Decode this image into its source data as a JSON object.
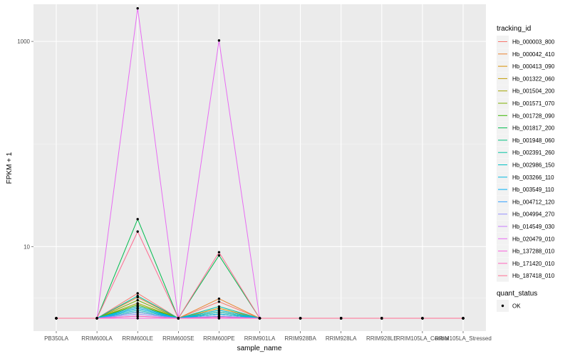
{
  "chart_data": {
    "type": "line",
    "xlabel": "sample_name",
    "ylabel": "FPKM + 1",
    "y_scale": "log10",
    "ylim": [
      1.5,
      2300
    ],
    "y_ticks": [
      {
        "value": 10,
        "label": "10"
      },
      {
        "value": 1000,
        "label": "1000"
      }
    ],
    "categories": [
      "PB350LA",
      "RRIM600LA",
      "RRIM600LE",
      "RRIM600SE",
      "RRIM600PE",
      "RRIM901LA",
      "RRIM928BA",
      "RRIM928LA",
      "RRIM928LE",
      "RRIM105LA_Control",
      "RRIM105LA_Stressed"
    ],
    "grid": true,
    "legend": {
      "position": "right",
      "title": "tracking_id",
      "entries": [
        "Hb_000003_800",
        "Hb_000042_410",
        "Hb_000413_090",
        "Hb_001322_060",
        "Hb_001504_200",
        "Hb_001571_070",
        "Hb_001728_090",
        "Hb_001817_200",
        "Hb_001948_060",
        "Hb_002391_260",
        "Hb_002986_150",
        "Hb_003266_110",
        "Hb_003549_110",
        "Hb_004712_120",
        "Hb_004994_270",
        "Hb_014549_030",
        "Hb_020479_010",
        "Hb_137288_010",
        "Hb_171420_010",
        "Hb_187418_010"
      ]
    },
    "shape_legend": {
      "title": "quant_status",
      "entries": [
        "OK"
      ]
    },
    "series": [
      {
        "name": "Hb_000003_800",
        "color": "#F8766D",
        "values": [
          2,
          2,
          3.5,
          2,
          2.9,
          2,
          2,
          2,
          2,
          2,
          2
        ]
      },
      {
        "name": "Hb_000042_410",
        "color": "#EA8331",
        "values": [
          2,
          2,
          3.2,
          2,
          3.1,
          2,
          2,
          2,
          2,
          2,
          2
        ]
      },
      {
        "name": "Hb_000413_090",
        "color": "#D89000",
        "values": [
          2,
          2,
          2.6,
          2,
          2.5,
          2,
          2,
          2,
          2,
          2,
          2
        ]
      },
      {
        "name": "Hb_001322_060",
        "color": "#C09B00",
        "values": [
          2,
          2,
          2.3,
          2,
          2.3,
          2,
          2,
          2,
          2,
          2,
          2
        ]
      },
      {
        "name": "Hb_001504_200",
        "color": "#A3A500",
        "values": [
          2,
          2,
          2.8,
          2,
          2.2,
          2,
          2,
          2,
          2,
          2,
          2
        ]
      },
      {
        "name": "Hb_001571_070",
        "color": "#7CAE00",
        "values": [
          2,
          2,
          3.0,
          2,
          2.4,
          2,
          2,
          2,
          2,
          2,
          2
        ]
      },
      {
        "name": "Hb_001728_090",
        "color": "#39B600",
        "values": [
          2,
          2,
          2.7,
          2,
          2.1,
          2,
          2,
          2,
          2,
          2,
          2
        ]
      },
      {
        "name": "Hb_001817_200",
        "color": "#00BB4E",
        "values": [
          2,
          2,
          18.5,
          2,
          8.2,
          2,
          2,
          2,
          2,
          2,
          2
        ]
      },
      {
        "name": "Hb_001948_060",
        "color": "#00BF7D",
        "values": [
          2,
          2,
          2.5,
          2,
          2.2,
          2,
          2,
          2,
          2,
          2,
          2
        ]
      },
      {
        "name": "Hb_002391_260",
        "color": "#00C1A3",
        "values": [
          2,
          2,
          3.3,
          2,
          2.6,
          2,
          2,
          2,
          2,
          2,
          2
        ]
      },
      {
        "name": "Hb_002986_150",
        "color": "#00BFC4",
        "values": [
          2,
          2,
          2.4,
          2,
          2.3,
          2,
          2,
          2,
          2,
          2,
          2
        ]
      },
      {
        "name": "Hb_003266_110",
        "color": "#00BAE0",
        "values": [
          2,
          2,
          2.6,
          2,
          2.4,
          2,
          2,
          2,
          2,
          2,
          2
        ]
      },
      {
        "name": "Hb_003549_110",
        "color": "#00B0F6",
        "values": [
          2,
          2,
          2.5,
          2,
          2.2,
          2,
          2,
          2,
          2,
          2,
          2
        ]
      },
      {
        "name": "Hb_004712_120",
        "color": "#35A2FF",
        "values": [
          2,
          2,
          2.3,
          2,
          2.1,
          2,
          2,
          2,
          2,
          2,
          2
        ]
      },
      {
        "name": "Hb_004994_270",
        "color": "#9590FF",
        "values": [
          2,
          2,
          2.2,
          2,
          2.1,
          2,
          2,
          2,
          2,
          2,
          2
        ]
      },
      {
        "name": "Hb_014549_030",
        "color": "#C77CFF",
        "values": [
          2,
          2,
          2.1,
          2,
          2.0,
          2,
          2,
          2,
          2,
          2,
          2
        ]
      },
      {
        "name": "Hb_020479_010",
        "color": "#E76BF3",
        "values": [
          2,
          2,
          2100,
          2,
          1020,
          2,
          2,
          2,
          2,
          2,
          2
        ]
      },
      {
        "name": "Hb_137288_010",
        "color": "#FA62DB",
        "values": [
          2,
          2,
          2.0,
          2,
          2.0,
          2,
          2,
          2,
          2,
          2,
          2
        ]
      },
      {
        "name": "Hb_171420_010",
        "color": "#FF62BC",
        "values": [
          2,
          2,
          2.1,
          2,
          2.05,
          2,
          2,
          2,
          2,
          2,
          2
        ]
      },
      {
        "name": "Hb_187418_010",
        "color": "#FF6C91",
        "values": [
          2,
          2,
          14,
          2,
          8.8,
          2,
          2,
          2,
          2,
          2,
          2
        ]
      }
    ]
  }
}
